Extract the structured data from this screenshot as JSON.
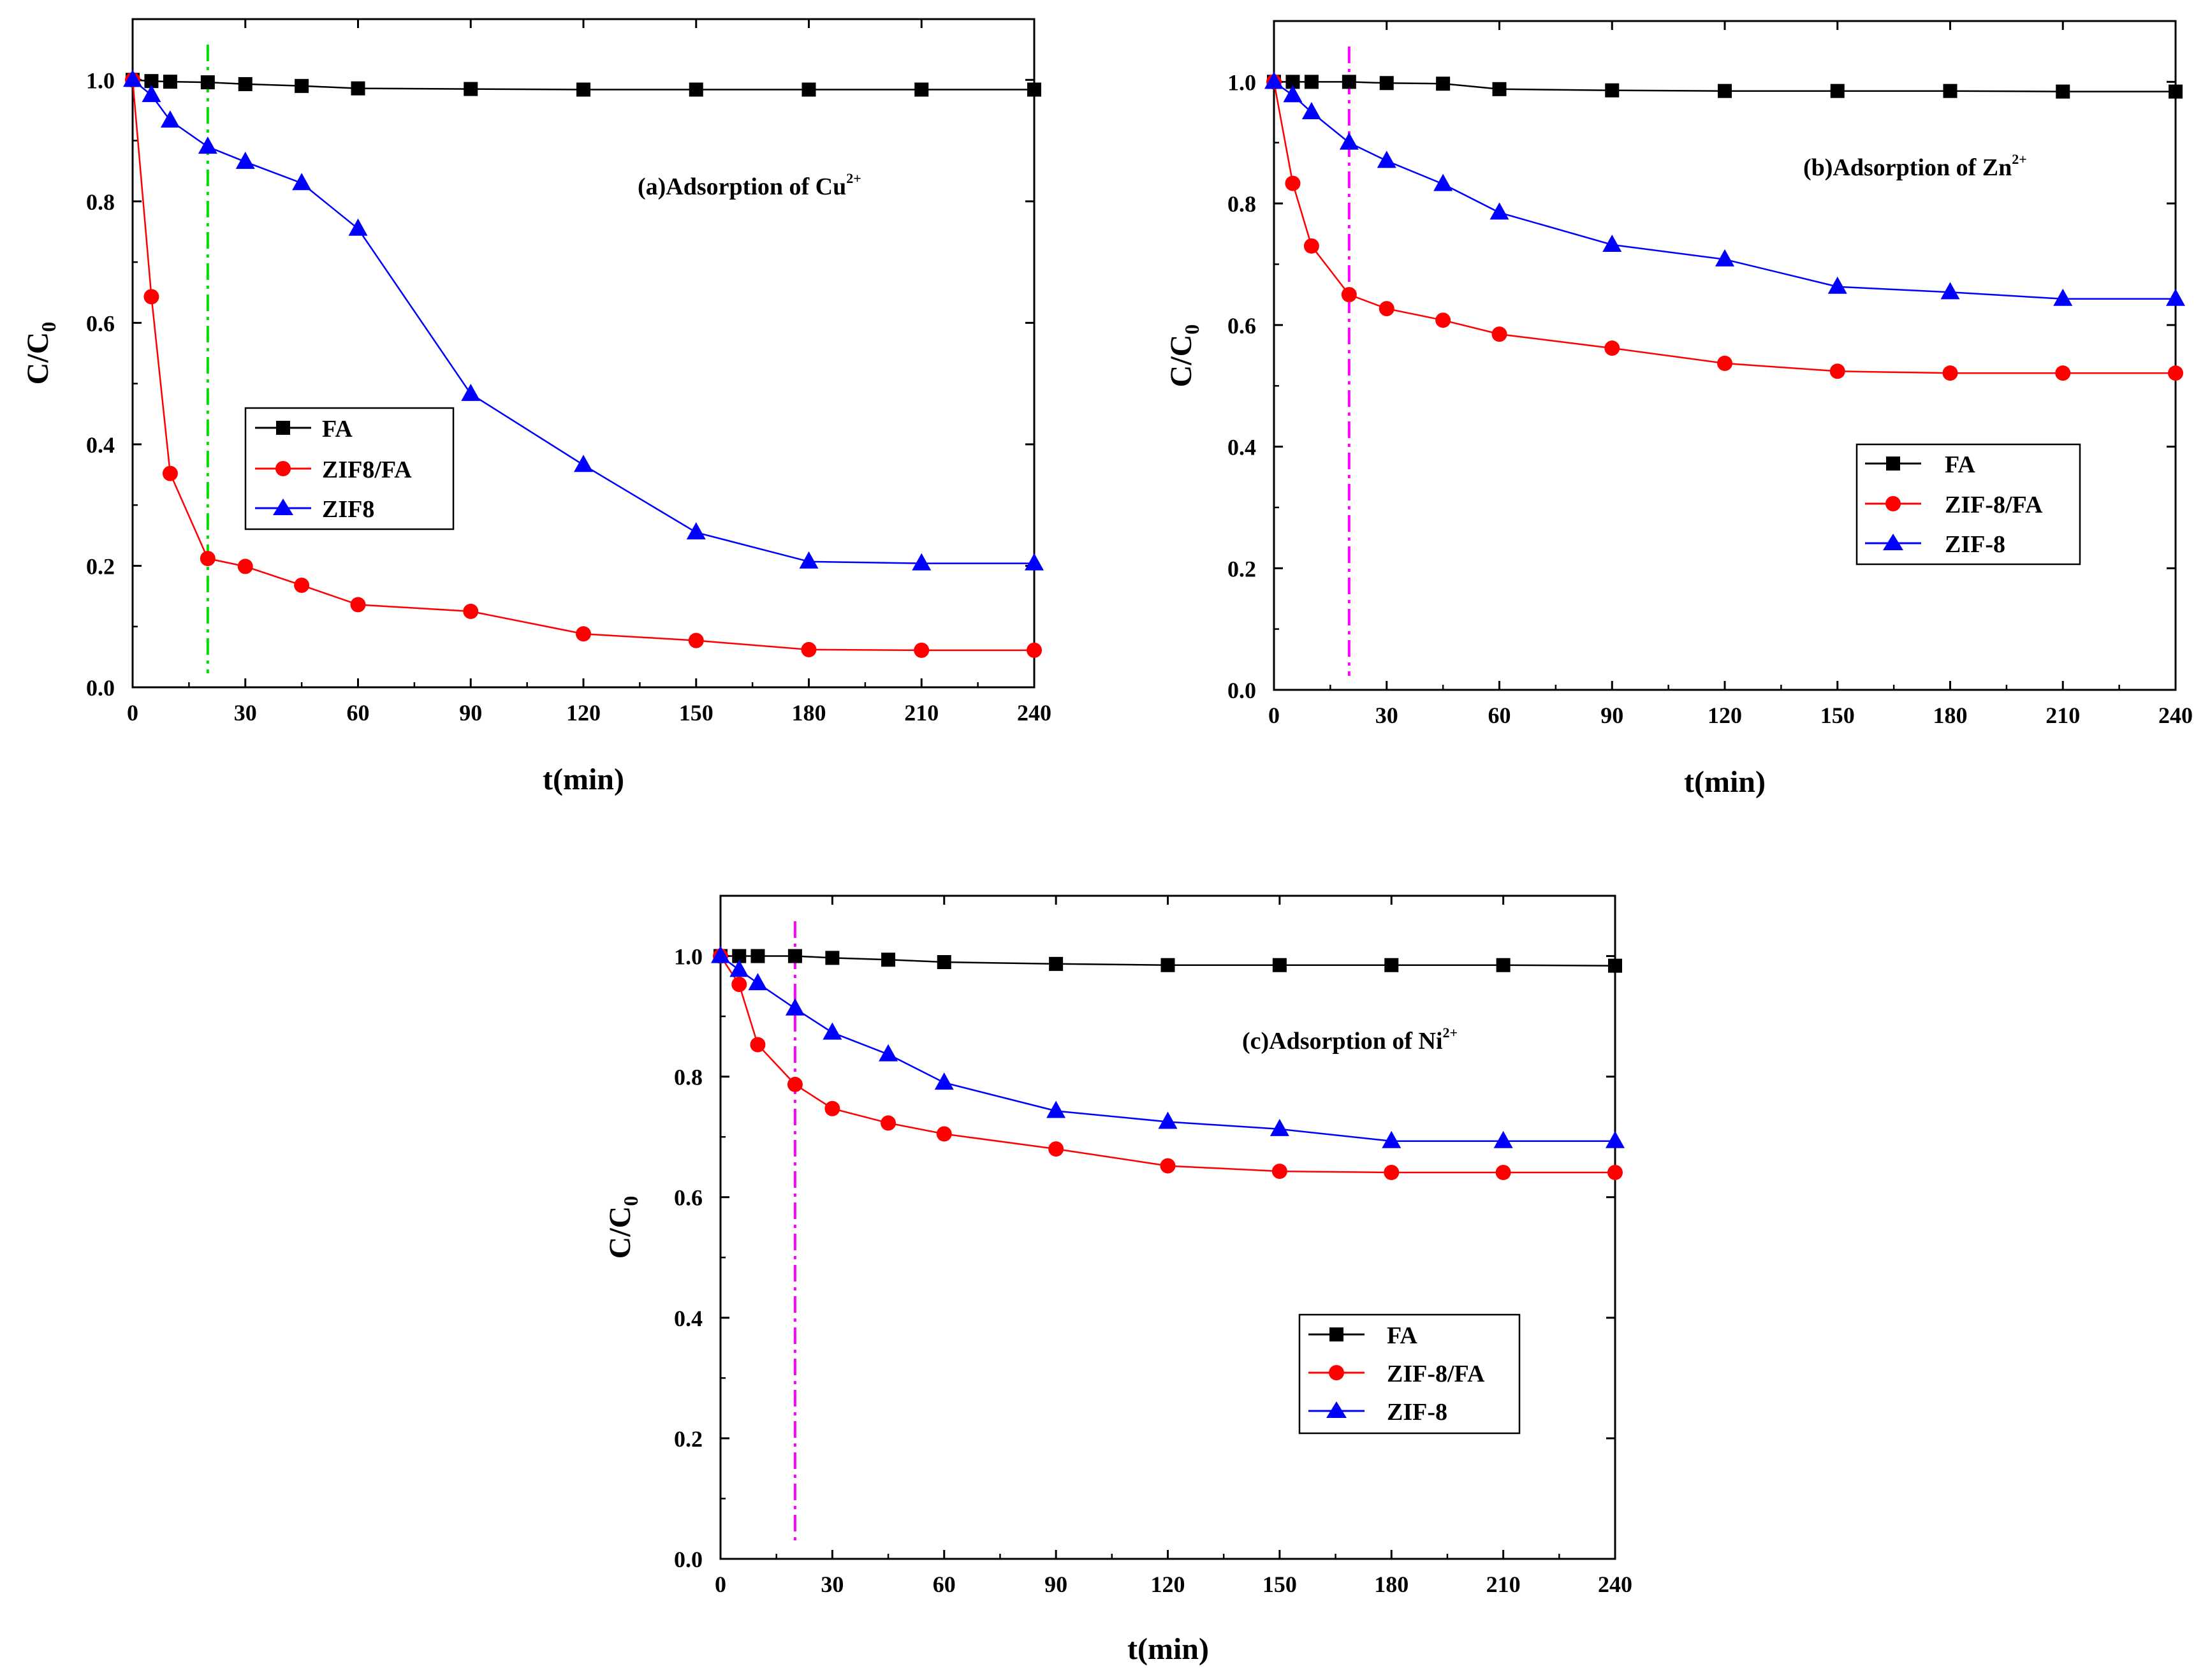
{
  "chart_data": [
    {
      "id": "a",
      "type": "line",
      "annotation": {
        "text": "(a)Adsorption of Cu",
        "sup": "2+"
      },
      "xlabel": "t(min)",
      "ylabel": {
        "main": "C/C",
        "sub": "0"
      },
      "xlim": [
        0,
        240
      ],
      "ylim": [
        0,
        1.1
      ],
      "xticks": [
        0,
        30,
        60,
        90,
        120,
        150,
        180,
        210,
        240
      ],
      "yticks": [
        0.0,
        0.2,
        0.4,
        0.6,
        0.8,
        1.0
      ],
      "ytick_labels": [
        "0.0",
        "0.2",
        "0.4",
        "0.6",
        "0.8",
        "1.0"
      ],
      "vline": {
        "x": 20,
        "color": "#00dd00"
      },
      "legend": {
        "position": "center-left"
      },
      "series": [
        {
          "name": "FA",
          "color": "#000000",
          "marker": "square",
          "x": [
            0,
            5,
            10,
            20,
            30,
            45,
            60,
            90,
            120,
            150,
            180,
            210,
            240
          ],
          "y": [
            1.0,
            0.998,
            0.997,
            0.996,
            0.993,
            0.99,
            0.986,
            0.985,
            0.984,
            0.984,
            0.984,
            0.984,
            0.984
          ]
        },
        {
          "name": "ZIF8/FA",
          "color": "#ff0000",
          "marker": "circle",
          "x": [
            0,
            5,
            10,
            20,
            30,
            45,
            60,
            90,
            120,
            150,
            180,
            210,
            240
          ],
          "y": [
            1.0,
            0.643,
            0.352,
            0.212,
            0.199,
            0.168,
            0.136,
            0.125,
            0.088,
            0.077,
            0.062,
            0.061,
            0.061
          ]
        },
        {
          "name": "ZIF8",
          "color": "#0000ff",
          "marker": "triangle",
          "x": [
            0,
            5,
            10,
            20,
            30,
            45,
            60,
            90,
            120,
            150,
            180,
            210,
            240
          ],
          "y": [
            1.0,
            0.975,
            0.933,
            0.89,
            0.865,
            0.83,
            0.755,
            0.483,
            0.366,
            0.255,
            0.207,
            0.204,
            0.204
          ]
        }
      ]
    },
    {
      "id": "b",
      "type": "line",
      "annotation": {
        "text": "(b)Adsorption of Zn",
        "sup": "2+"
      },
      "xlabel": "t(min)",
      "ylabel": {
        "main": "C/C",
        "sub": "0"
      },
      "xlim": [
        0,
        240
      ],
      "ylim": [
        0,
        1.1
      ],
      "xticks": [
        0,
        30,
        60,
        90,
        120,
        150,
        180,
        210,
        240
      ],
      "yticks": [
        0.0,
        0.2,
        0.4,
        0.6,
        0.8,
        1.0
      ],
      "ytick_labels": [
        "0.0",
        "0.2",
        "0.4",
        "0.6",
        "0.8",
        "1.0"
      ],
      "vline": {
        "x": 20,
        "color": "#ff00ff"
      },
      "legend": {
        "position": "center-right"
      },
      "series": [
        {
          "name": "FA",
          "color": "#000000",
          "marker": "square",
          "x": [
            0,
            5,
            10,
            20,
            30,
            45,
            60,
            90,
            120,
            150,
            180,
            210,
            240
          ],
          "y": [
            1.0,
            1.0,
            1.0,
            1.0,
            0.998,
            0.997,
            0.988,
            0.986,
            0.985,
            0.985,
            0.985,
            0.984,
            0.984
          ]
        },
        {
          "name": "ZIF-8/FA",
          "color": "#ff0000",
          "marker": "circle",
          "x": [
            0,
            5,
            10,
            20,
            30,
            45,
            60,
            90,
            120,
            150,
            180,
            210,
            240
          ],
          "y": [
            1.0,
            0.833,
            0.73,
            0.65,
            0.627,
            0.608,
            0.585,
            0.562,
            0.537,
            0.524,
            0.521,
            0.521,
            0.521
          ]
        },
        {
          "name": "ZIF-8",
          "color": "#0000ff",
          "marker": "triangle",
          "x": [
            0,
            5,
            10,
            20,
            30,
            45,
            60,
            90,
            120,
            150,
            180,
            210,
            240
          ],
          "y": [
            1.0,
            0.978,
            0.95,
            0.9,
            0.87,
            0.832,
            0.785,
            0.732,
            0.708,
            0.663,
            0.654,
            0.643,
            0.643
          ]
        }
      ]
    },
    {
      "id": "c",
      "type": "line",
      "annotation": {
        "text": "(c)Adsorption of Ni",
        "sup": "2+"
      },
      "xlabel": "t(min)",
      "ylabel": {
        "main": "C/C",
        "sub": "0"
      },
      "xlim": [
        0,
        240
      ],
      "ylim": [
        0,
        1.1
      ],
      "xticks": [
        0,
        30,
        60,
        90,
        120,
        150,
        180,
        210,
        240
      ],
      "yticks": [
        0.0,
        0.2,
        0.4,
        0.6,
        0.8,
        1.0
      ],
      "ytick_labels": [
        "0.0",
        "0.2",
        "0.4",
        "0.6",
        "0.8",
        "1.0"
      ],
      "vline": {
        "x": 20,
        "color": "#ff00ff"
      },
      "legend": {
        "position": "bottom-right"
      },
      "series": [
        {
          "name": "FA",
          "color": "#000000",
          "marker": "square",
          "x": [
            0,
            5,
            10,
            20,
            30,
            45,
            60,
            90,
            120,
            150,
            180,
            210,
            240
          ],
          "y": [
            1.0,
            1.0,
            1.0,
            1.0,
            0.997,
            0.994,
            0.99,
            0.987,
            0.985,
            0.985,
            0.985,
            0.985,
            0.984
          ]
        },
        {
          "name": "ZIF-8/FA",
          "color": "#ff0000",
          "marker": "circle",
          "x": [
            0,
            5,
            10,
            20,
            30,
            45,
            60,
            90,
            120,
            150,
            180,
            210,
            240
          ],
          "y": [
            1.0,
            0.953,
            0.853,
            0.787,
            0.747,
            0.723,
            0.705,
            0.68,
            0.652,
            0.643,
            0.641,
            0.641,
            0.641
          ]
        },
        {
          "name": "ZIF-8",
          "color": "#0000ff",
          "marker": "triangle",
          "x": [
            0,
            5,
            10,
            20,
            30,
            45,
            60,
            90,
            120,
            150,
            180,
            210,
            240
          ],
          "y": [
            1.0,
            0.977,
            0.955,
            0.913,
            0.873,
            0.837,
            0.79,
            0.743,
            0.725,
            0.713,
            0.693,
            0.693,
            0.693
          ]
        }
      ]
    }
  ]
}
